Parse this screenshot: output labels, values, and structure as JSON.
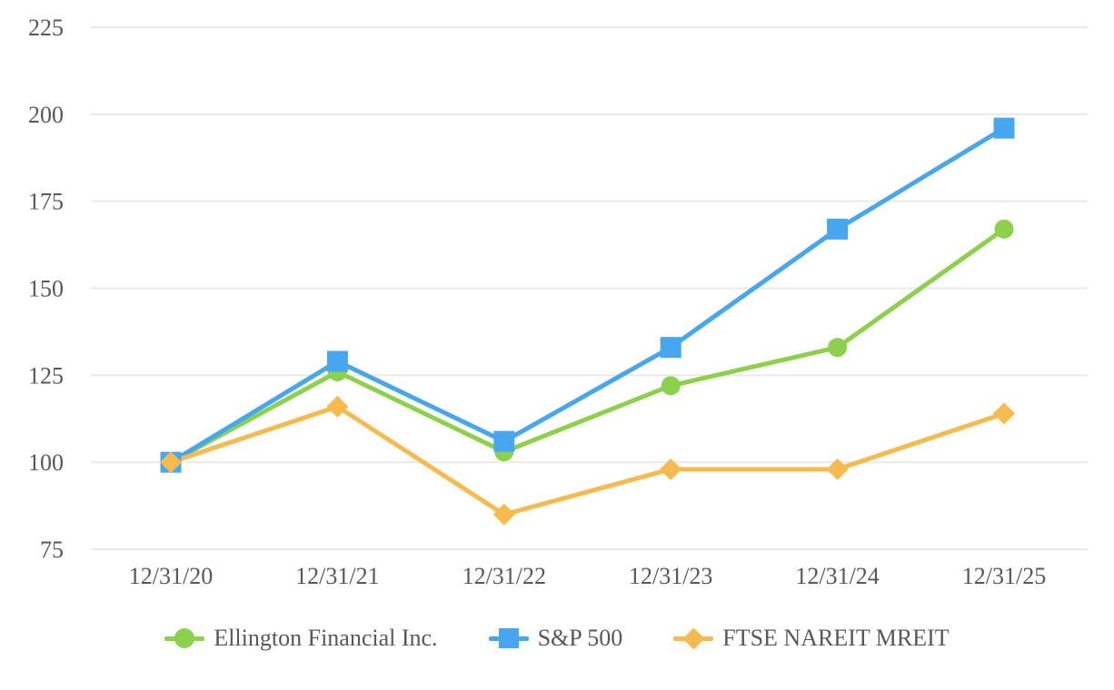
{
  "chart_data": {
    "type": "line",
    "title": "",
    "xlabel": "",
    "ylabel": "",
    "x": [
      "12/31/20",
      "12/31/21",
      "12/31/22",
      "12/31/23",
      "12/31/24",
      "12/31/25"
    ],
    "y_ticks": [
      75,
      100,
      125,
      150,
      175,
      200,
      225
    ],
    "ylim": [
      75,
      225
    ],
    "grid": "horizontal-only",
    "legend_position": "bottom-center",
    "series": [
      {
        "name": "Ellington Financial Inc.",
        "marker": "circle",
        "color": "#8dd04b",
        "values": [
          100,
          126,
          103,
          122,
          133,
          167
        ]
      },
      {
        "name": "S&P 500",
        "marker": "square",
        "color": "#46a7f0",
        "values": [
          100,
          129,
          106,
          133,
          167,
          196
        ]
      },
      {
        "name": "FTSE NAREIT MREIT",
        "marker": "diamond",
        "color": "#f6ba4f",
        "values": [
          100,
          116,
          85,
          98,
          98,
          114
        ]
      }
    ]
  },
  "style": {
    "grid_color": "#eaeaea",
    "axis_text_color": "#58585a",
    "background": "#ffffff"
  }
}
